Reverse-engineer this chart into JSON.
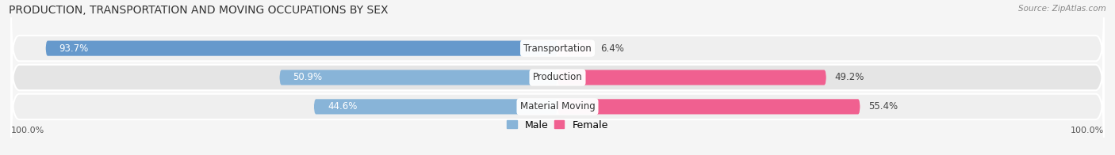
{
  "title": "PRODUCTION, TRANSPORTATION AND MOVING OCCUPATIONS BY SEX",
  "source": "Source: ZipAtlas.com",
  "categories": [
    "Transportation",
    "Production",
    "Material Moving"
  ],
  "male_pct": [
    93.7,
    50.9,
    44.6
  ],
  "female_pct": [
    6.4,
    49.2,
    55.4
  ],
  "male_color": "#88b4d8",
  "male_color_dark": "#6699cc",
  "female_color": "#f06090",
  "female_color_light": "#f5a0b8",
  "row_bg_color_odd": "#efefef",
  "row_bg_color_even": "#e5e5e5",
  "legend_male_color": "#88b4d8",
  "legend_female_color": "#f06090",
  "title_fontsize": 10,
  "source_fontsize": 7.5,
  "label_fontsize": 8.5,
  "axis_label_left": "100.0%",
  "axis_label_right": "100.0%",
  "bg_color": "#f5f5f5"
}
